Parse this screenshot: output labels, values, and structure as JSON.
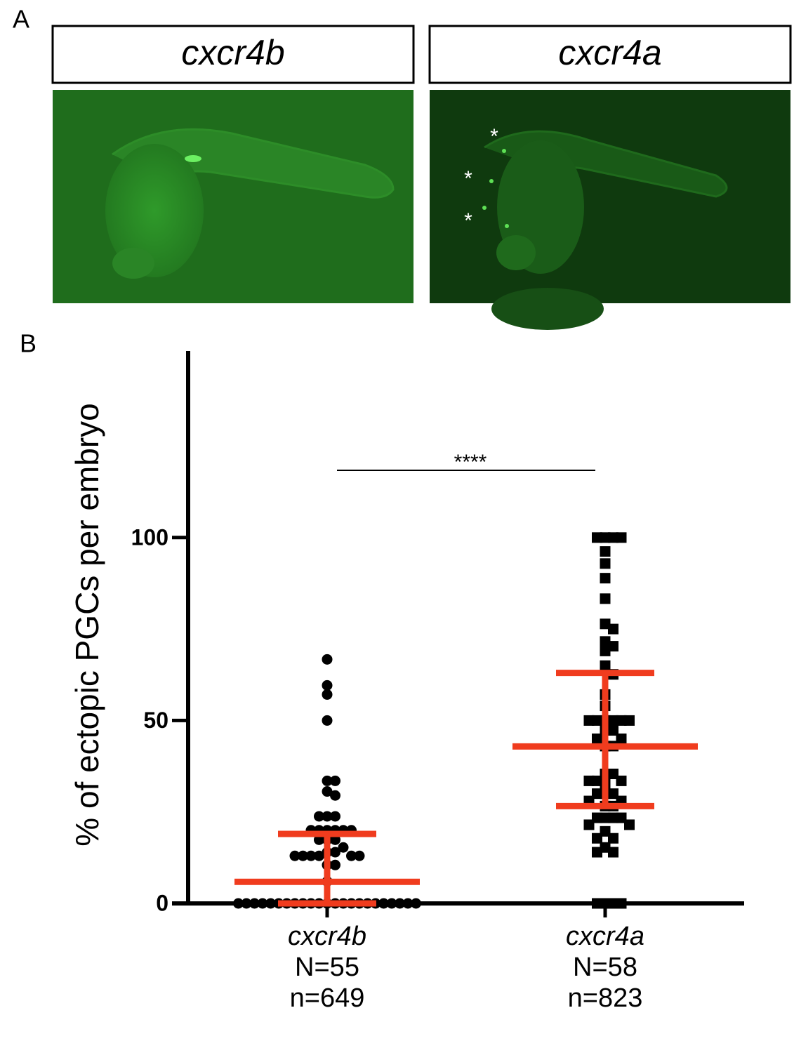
{
  "panel_a": {
    "label": "A",
    "panels": [
      {
        "title": "cxcr4b"
      },
      {
        "title": "cxcr4a",
        "marks": [
          "*",
          "*",
          "*"
        ]
      }
    ]
  },
  "chart_data": {
    "type": "scatter",
    "panel_label": "B",
    "ylabel": "% of ectopic PGCs per embryo",
    "ylim": [
      0,
      151
    ],
    "yticks": [
      0,
      50,
      100
    ],
    "annotation": "****",
    "summary_color": "#f03c1e",
    "marker_color": "#000000",
    "groups": [
      {
        "label": "cxcr4b",
        "N": "N=55",
        "n": "n=649",
        "marker": "circle",
        "values": [
          66.7,
          59.6,
          57.1,
          50,
          33.5,
          33.5,
          30.6,
          29.5,
          23.8,
          23.8,
          23.8,
          20,
          20,
          20,
          20,
          20,
          20,
          17.4,
          17.4,
          17.4,
          15.3,
          14,
          14,
          13,
          13,
          13,
          13,
          13,
          13,
          10.5,
          10.5,
          6,
          0,
          0,
          0,
          0,
          0,
          0,
          0,
          0,
          0,
          0,
          0,
          0,
          0,
          0,
          0,
          0,
          0,
          0,
          0,
          0,
          0,
          0,
          0
        ],
        "center": 5.9,
        "lower": 0,
        "upper": 19
      },
      {
        "label": "cxcr4a",
        "N": "N=58",
        "n": "n=823",
        "marker": "square",
        "values": [
          100,
          100,
          100,
          100,
          96.2,
          92.9,
          88.9,
          83.3,
          76.4,
          75,
          71.6,
          70.3,
          69,
          65,
          62.6,
          57.1,
          54,
          50,
          50,
          50,
          50,
          50,
          50,
          47.3,
          47.3,
          45,
          45,
          43,
          43,
          35.4,
          35.4,
          33.5,
          33.5,
          33.5,
          32.6,
          30,
          30,
          30,
          28,
          28,
          26.6,
          26.6,
          23.4,
          23.4,
          23.4,
          23.4,
          21.5,
          21.5,
          19.7,
          17.8,
          17.8,
          15.3,
          14,
          14,
          0,
          0,
          0,
          0
        ],
        "center": 42.9,
        "lower": 26.6,
        "upper": 63
      }
    ]
  }
}
